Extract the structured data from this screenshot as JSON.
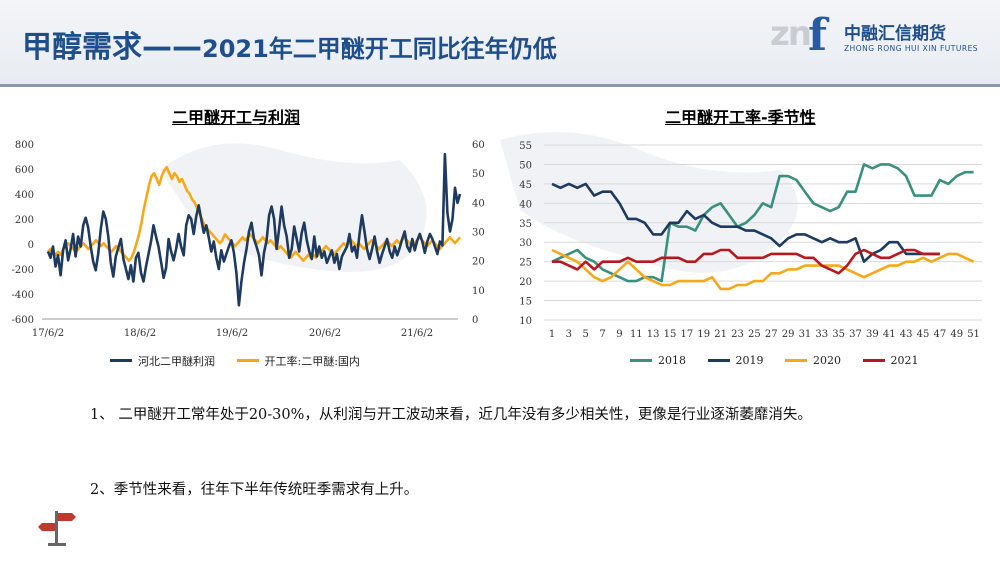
{
  "header": {
    "title_main": "甲醇需求——",
    "title_sub": "2021年二甲醚开工同比往年仍低",
    "logo_cn": "中融汇信期货",
    "logo_en": "ZHONG RONG HUI XIN FUTURES",
    "logo_mark": "zn",
    "logo_f": "f",
    "colors": {
      "title": "#1f4e8c",
      "rule": "#8a99ad"
    }
  },
  "notes": [
    "1、 二甲醚开工常年处于20-30%，从利润与开工波动来看，近几年没有多少相关性，更像是行业逐渐萎靡消失。",
    "2、季节性来看，往年下半年传统旺季需求有上升。"
  ],
  "chart_data": [
    {
      "type": "line",
      "title": "二甲醚开工与利润",
      "x_ticks": [
        "17/6/2",
        "18/6/2",
        "19/6/2",
        "20/6/2",
        "21/6/2"
      ],
      "y_left": {
        "ticks": [
          800,
          600,
          400,
          200,
          0,
          -200,
          -400,
          -600
        ],
        "range": [
          -600,
          800
        ]
      },
      "y_right": {
        "ticks": [
          60,
          50,
          40,
          30,
          20,
          10,
          0
        ],
        "range": [
          0,
          60
        ]
      },
      "grid": false,
      "legend": "bottom",
      "series": [
        {
          "name": "河北二甲醚利润",
          "axis": "left",
          "color": "#1f3a5f",
          "values": [
            -60,
            -110,
            -20,
            -180,
            -90,
            -250,
            -50,
            30,
            -130,
            -40,
            80,
            -100,
            60,
            -20,
            150,
            210,
            130,
            -20,
            -140,
            -210,
            -80,
            120,
            260,
            200,
            60,
            -150,
            -260,
            -100,
            -30,
            40,
            -120,
            -200,
            -280,
            -170,
            -300,
            -110,
            -70,
            -230,
            -300,
            -180,
            -80,
            20,
            150,
            60,
            -20,
            -140,
            -270,
            -190,
            40,
            -60,
            -130,
            -40,
            80,
            -20,
            -90,
            150,
            230,
            200,
            80,
            220,
            310,
            200,
            90,
            150,
            50,
            -60,
            20,
            -110,
            -200,
            -50,
            -140,
            -80,
            -20,
            30,
            -70,
            -230,
            -490,
            -300,
            -150,
            -40,
            100,
            170,
            40,
            -20,
            -90,
            -250,
            -70,
            30,
            230,
            300,
            200,
            -40,
            120,
            300,
            150,
            60,
            -110,
            -40,
            140,
            40,
            -60,
            90,
            170,
            30,
            -60,
            -120,
            60,
            -100,
            -20,
            -110,
            -60,
            -150,
            -100,
            -50,
            -150,
            -80,
            -200,
            -100,
            -60,
            -20,
            80,
            -60,
            -20,
            -110,
            80,
            230,
            100,
            -40,
            -120,
            -40,
            60,
            -60,
            -150,
            -80,
            -20,
            40,
            -60,
            -110,
            -20,
            -90,
            -30,
            40,
            100,
            -20,
            -60,
            40,
            -50,
            30,
            80,
            20,
            -70,
            20,
            80,
            40,
            -20,
            -80,
            20,
            -10,
            720,
            250,
            100,
            200,
            450,
            330,
            400
          ]
        },
        {
          "name": "开工率:二甲醚:国内",
          "axis": "right",
          "color": "#f5a81c",
          "values": [
            23,
            24,
            23,
            22,
            23,
            22,
            24,
            25,
            26,
            25,
            24,
            23,
            24,
            25,
            26,
            25,
            24,
            25,
            26,
            27,
            26,
            25,
            26,
            25,
            24,
            23,
            24,
            25,
            24,
            23,
            22,
            21,
            20,
            21,
            23,
            26,
            29,
            33,
            38,
            42,
            46,
            49,
            50,
            48,
            46,
            49,
            51,
            52,
            50,
            48,
            50,
            49,
            47,
            48,
            46,
            44,
            43,
            41,
            40,
            38,
            36,
            34,
            32,
            31,
            30,
            29,
            28,
            27,
            26,
            27,
            29,
            28,
            27,
            26,
            25,
            26,
            27,
            28,
            27,
            28,
            29,
            28,
            27,
            26,
            27,
            28,
            27,
            26,
            27,
            26,
            25,
            24,
            25,
            24,
            23,
            22,
            21,
            22,
            23,
            22,
            21,
            20,
            21,
            22,
            21,
            22,
            21,
            22,
            23,
            24,
            25,
            24,
            23,
            22,
            23,
            24,
            25,
            26,
            25,
            26,
            27,
            26,
            25,
            26,
            25,
            24,
            25,
            26,
            27,
            26,
            25,
            24,
            25,
            26,
            27,
            26,
            25,
            26,
            27,
            26,
            27,
            28,
            27,
            26,
            25,
            26,
            27,
            28,
            27,
            26,
            25,
            26,
            27,
            26,
            25,
            24,
            25,
            26,
            27,
            28,
            27,
            26,
            27,
            28
          ]
        }
      ]
    },
    {
      "type": "line",
      "title": "二甲醚开工率-季节性",
      "x_ticks": [
        "1",
        "3",
        "5",
        "7",
        "9",
        "11",
        "13",
        "15",
        "17",
        "19",
        "21",
        "23",
        "25",
        "27",
        "29",
        "31",
        "33",
        "35",
        "37",
        "39",
        "41",
        "43",
        "45",
        "47",
        "49",
        "51"
      ],
      "y_ticks": [
        55,
        50,
        45,
        40,
        35,
        30,
        25,
        20,
        15,
        10
      ],
      "ylim": [
        10,
        55
      ],
      "grid": true,
      "legend": "bottom",
      "series": [
        {
          "name": "2018",
          "color": "#3a8f7e",
          "values": [
            25,
            26,
            27,
            28,
            26,
            25,
            23,
            22,
            21,
            20,
            20,
            21,
            21,
            20,
            35,
            34,
            34,
            33,
            37,
            39,
            40,
            37,
            34,
            35,
            37,
            40,
            39,
            47,
            47,
            46,
            43,
            40,
            39,
            38,
            39,
            43,
            43,
            50,
            49,
            50,
            50,
            49,
            47,
            42,
            42,
            42,
            46,
            45,
            47,
            48,
            48
          ]
        },
        {
          "name": "2019",
          "color": "#1f3a5f",
          "values": [
            45,
            44,
            45,
            44,
            45,
            42,
            43,
            43,
            40,
            36,
            36,
            35,
            32,
            32,
            35,
            35,
            38,
            36,
            37,
            35,
            34,
            34,
            34,
            33,
            33,
            32,
            31,
            29,
            31,
            32,
            32,
            31,
            30,
            31,
            30,
            30,
            31,
            25,
            27,
            28,
            30,
            30,
            27,
            27,
            27,
            27,
            27
          ]
        },
        {
          "name": "2020",
          "color": "#f5a81c",
          "values": [
            28,
            27,
            26,
            25,
            23,
            21,
            20,
            21,
            23,
            25,
            23,
            21,
            20,
            19,
            19,
            20,
            20,
            20,
            20,
            21,
            18,
            18,
            19,
            19,
            20,
            20,
            22,
            22,
            23,
            23,
            24,
            24,
            24,
            24,
            24,
            23,
            22,
            21,
            22,
            23,
            24,
            24,
            25,
            25,
            26,
            25,
            26,
            27,
            27,
            26,
            25
          ]
        },
        {
          "name": "2021",
          "color": "#b8171e",
          "values": [
            25,
            25,
            24,
            23,
            25,
            23,
            25,
            25,
            25,
            26,
            25,
            25,
            25,
            26,
            26,
            26,
            25,
            25,
            27,
            27,
            28,
            28,
            26,
            26,
            26,
            26,
            27,
            27,
            27,
            27,
            26,
            26,
            24,
            23,
            22,
            24,
            27,
            28,
            27,
            26,
            26,
            27,
            28,
            28,
            27,
            27,
            27
          ]
        }
      ]
    }
  ]
}
